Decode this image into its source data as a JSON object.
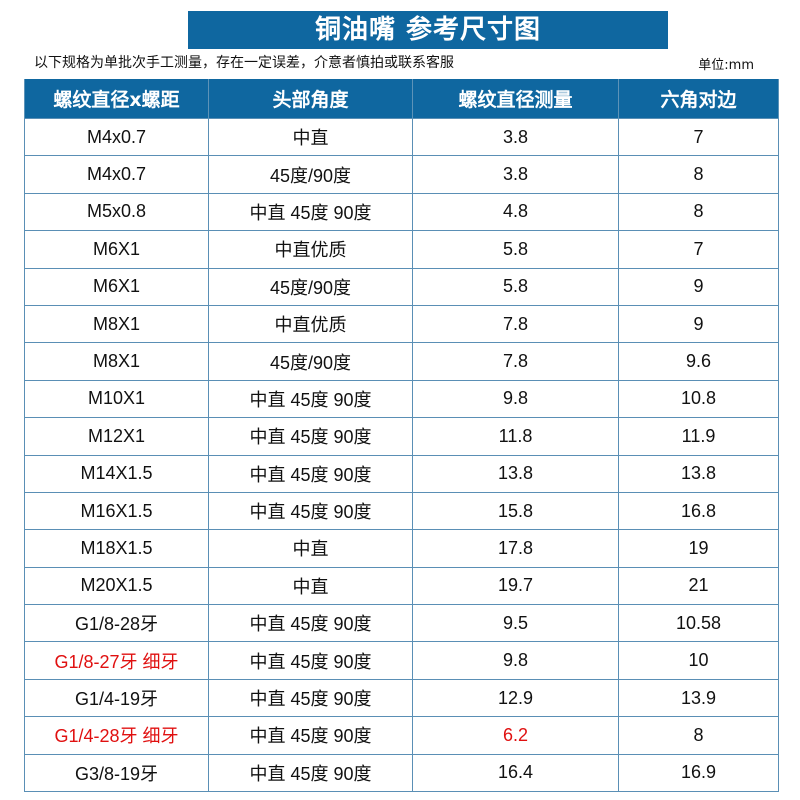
{
  "title": "铜油嘴  参考尺寸图",
  "note": "以下规格为单批次手工测量，存在一定误差，介意者慎拍或联系客服",
  "unit": "单位:mm",
  "accent_color": "#0f67a0",
  "highlight_color": "#e01010",
  "headers": [
    "螺纹直径x螺距",
    "头部角度",
    "螺纹直径测量",
    "六角对边"
  ],
  "rows": [
    {
      "cells": [
        "M4x0.7",
        "中直",
        "3.8",
        "7"
      ],
      "red": []
    },
    {
      "cells": [
        "M4x0.7",
        "45度/90度",
        "3.8",
        "8"
      ],
      "red": []
    },
    {
      "cells": [
        "M5x0.8",
        "中直 45度 90度",
        "4.8",
        "8"
      ],
      "red": []
    },
    {
      "cells": [
        "M6X1",
        "中直优质",
        "5.8",
        "7"
      ],
      "red": []
    },
    {
      "cells": [
        "M6X1",
        "45度/90度",
        "5.8",
        "9"
      ],
      "red": []
    },
    {
      "cells": [
        "M8X1",
        "中直优质",
        "7.8",
        "9"
      ],
      "red": []
    },
    {
      "cells": [
        "M8X1",
        "45度/90度",
        "7.8",
        "9.6"
      ],
      "red": []
    },
    {
      "cells": [
        "M10X1",
        "中直 45度 90度",
        "9.8",
        "10.8"
      ],
      "red": []
    },
    {
      "cells": [
        "M12X1",
        "中直 45度 90度",
        "11.8",
        "11.9"
      ],
      "red": []
    },
    {
      "cells": [
        "M14X1.5",
        "中直 45度 90度",
        "13.8",
        "13.8"
      ],
      "red": []
    },
    {
      "cells": [
        "M16X1.5",
        "中直 45度 90度",
        "15.8",
        "16.8"
      ],
      "red": []
    },
    {
      "cells": [
        "M18X1.5",
        "中直",
        "17.8",
        "19"
      ],
      "red": []
    },
    {
      "cells": [
        "M20X1.5",
        "中直",
        "19.7",
        "21"
      ],
      "red": []
    },
    {
      "cells": [
        "G1/8-28牙",
        "中直 45度 90度",
        "9.5",
        "10.58"
      ],
      "red": []
    },
    {
      "cells": [
        "G1/8-27牙  细牙",
        "中直 45度 90度",
        "9.8",
        "10"
      ],
      "red": [
        0
      ]
    },
    {
      "cells": [
        "G1/4-19牙",
        "中直 45度 90度",
        "12.9",
        "13.9"
      ],
      "red": []
    },
    {
      "cells": [
        "G1/4-28牙  细牙",
        "中直 45度 90度",
        "6.2",
        "8"
      ],
      "red": [
        0,
        2
      ]
    },
    {
      "cells": [
        "G3/8-19牙",
        "中直 45度 90度",
        "16.4",
        "16.9"
      ],
      "red": []
    }
  ]
}
